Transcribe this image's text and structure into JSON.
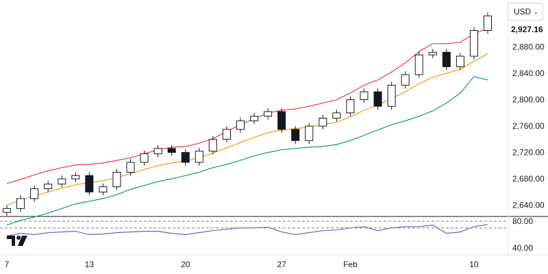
{
  "toolbar": {
    "currency": "USD",
    "currency_icon": "chevron-down-icon"
  },
  "last_price": "2,927.16",
  "colors": {
    "up": "#089981",
    "down": "#131722",
    "upper_band": "#f23645",
    "middle_band": "#ff9800",
    "lower_band": "#089981",
    "rsi": "#7e57c2",
    "grid": "#e0e3eb"
  },
  "chart_data": [
    {
      "type": "candlestick",
      "title": "",
      "x": [
        "Jan 7",
        "Jan 8",
        "Jan 9",
        "Jan 10",
        "Jan 11",
        "Jan 12",
        "Jan 13",
        "Jan 14",
        "Jan 15",
        "Jan 16",
        "Jan 17",
        "Jan 18",
        "Jan 19",
        "Jan 20",
        "Jan 21",
        "Jan 22",
        "Jan 23",
        "Jan 24",
        "Jan 25",
        "Jan 26",
        "Jan 27",
        "Jan 28",
        "Jan 29",
        "Jan 30",
        "Jan 31",
        "Feb 1",
        "Feb 2",
        "Feb 3",
        "Feb 4",
        "Feb 5",
        "Feb 6",
        "Feb 7",
        "Feb 8",
        "Feb 9",
        "Feb 10",
        "Feb 11"
      ],
      "x_tick_labels": [
        "7",
        "13",
        "20",
        "27",
        "Feb",
        "10"
      ],
      "close": [
        2635,
        2650,
        2665,
        2672,
        2680,
        2685,
        2660,
        2668,
        2690,
        2705,
        2718,
        2726,
        2720,
        2705,
        2722,
        2740,
        2755,
        2768,
        2775,
        2782,
        2755,
        2738,
        2760,
        2772,
        2780,
        2800,
        2812,
        2790,
        2822,
        2838,
        2868,
        2872,
        2850,
        2866,
        2905,
        2927.16
      ],
      "upper_band": [
        2673,
        2679,
        2686,
        2692,
        2697,
        2701,
        2702,
        2704,
        2708,
        2712,
        2718,
        2724,
        2728,
        2729,
        2734,
        2741,
        2752,
        2762,
        2771,
        2780,
        2784,
        2786,
        2790,
        2795,
        2800,
        2810,
        2822,
        2830,
        2842,
        2856,
        2873,
        2885,
        2885,
        2887,
        2900,
        2908
      ],
      "middle_band": [
        2640,
        2648,
        2654,
        2660,
        2666,
        2671,
        2674,
        2677,
        2682,
        2688,
        2694,
        2700,
        2704,
        2707,
        2712,
        2719,
        2727,
        2735,
        2743,
        2750,
        2754,
        2756,
        2759,
        2762,
        2766,
        2774,
        2784,
        2792,
        2802,
        2812,
        2824,
        2834,
        2840,
        2846,
        2858,
        2870
      ],
      "lower_band": [
        2610,
        2617,
        2622,
        2628,
        2635,
        2642,
        2646,
        2650,
        2656,
        2664,
        2670,
        2676,
        2680,
        2685,
        2690,
        2697,
        2702,
        2708,
        2715,
        2720,
        2724,
        2726,
        2728,
        2729,
        2732,
        2738,
        2746,
        2754,
        2762,
        2768,
        2775,
        2783,
        2795,
        2810,
        2835,
        2830
      ],
      "ylim": [
        2625,
        2945
      ],
      "y_ticks": [
        2640,
        2680,
        2720,
        2760,
        2800,
        2840,
        2880
      ],
      "y_tick_labels": [
        "2,640.00",
        "2,680.00",
        "2,720.00",
        "2,760.00",
        "2,800.00",
        "2,840.00",
        "2,880.00"
      ]
    },
    {
      "type": "line",
      "series": [
        {
          "values": [
            58,
            62,
            60,
            63,
            64,
            65,
            60,
            61,
            63,
            64,
            65,
            65,
            62,
            60,
            63,
            66,
            68,
            70,
            70,
            71,
            64,
            60,
            63,
            66,
            67,
            70,
            72,
            66,
            70,
            72,
            72,
            74,
            62,
            64,
            72,
            75
          ]
        }
      ],
      "ylim": [
        30,
        85
      ],
      "y_ticks": [
        40,
        80
      ],
      "y_tick_labels": [
        "40.00",
        "80.00"
      ],
      "levels": [
        30,
        70
      ]
    }
  ]
}
